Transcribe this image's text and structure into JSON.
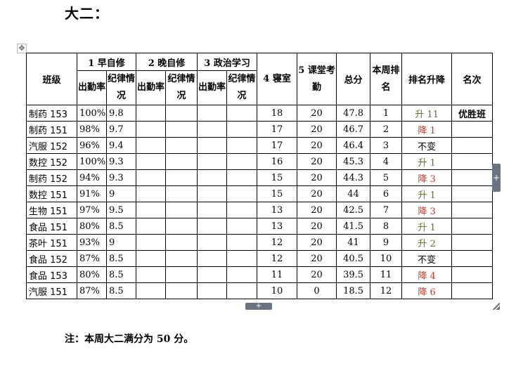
{
  "heading": "大二：",
  "table": {
    "headers": {
      "class": "班级",
      "morning": "1 早自修",
      "evening": "2 晚自修",
      "politics": "3 政治学习",
      "attendance_rate": "出勤率",
      "discipline": "纪律情况",
      "dorm": "4 寝室",
      "class_attendance": "5 课堂考勤",
      "total": "总分",
      "week_rank": "本周排名",
      "rank_change": "排名升降",
      "honor": "名次"
    },
    "rows": [
      {
        "cls": "制药 153",
        "rate": "100%",
        "disc": "9.8",
        "dorm": "18",
        "attend": "20",
        "total": "47.8",
        "rank": "1",
        "change": "升 11",
        "dir": "up",
        "honor": "优胜班"
      },
      {
        "cls": "制药 151",
        "rate": "98%",
        "disc": "9.7",
        "dorm": "17",
        "attend": "20",
        "total": "46.7",
        "rank": "2",
        "change": "降 1",
        "dir": "down",
        "honor": ""
      },
      {
        "cls": "汽服 152",
        "rate": "96%",
        "disc": "9.4",
        "dorm": "17",
        "attend": "20",
        "total": "46.4",
        "rank": "3",
        "change": "不变",
        "dir": "same",
        "honor": ""
      },
      {
        "cls": "数控 152",
        "rate": "100%",
        "disc": "9.3",
        "dorm": "16",
        "attend": "20",
        "total": "45.3",
        "rank": "4",
        "change": "升 1",
        "dir": "up",
        "honor": ""
      },
      {
        "cls": "制药 152",
        "rate": "94%",
        "disc": "9.3",
        "dorm": "15",
        "attend": "20",
        "total": "44.3",
        "rank": "5",
        "change": "降 3",
        "dir": "down",
        "honor": ""
      },
      {
        "cls": "数控 151",
        "rate": "91%",
        "disc": "9",
        "dorm": "15",
        "attend": "20",
        "total": "44",
        "rank": "6",
        "change": "升 1",
        "dir": "up",
        "honor": ""
      },
      {
        "cls": "生物 151",
        "rate": "97%",
        "disc": "9.5",
        "dorm": "13",
        "attend": "20",
        "total": "42.5",
        "rank": "7",
        "change": "降 3",
        "dir": "down",
        "honor": ""
      },
      {
        "cls": "食品 151",
        "rate": "80%",
        "disc": "8.5",
        "dorm": "13",
        "attend": "20",
        "total": "41.5",
        "rank": "8",
        "change": "升 1",
        "dir": "up",
        "honor": ""
      },
      {
        "cls": "茶叶 151",
        "rate": "93%",
        "disc": "9",
        "dorm": "12",
        "attend": "20",
        "total": "41",
        "rank": "9",
        "change": "升 2",
        "dir": "up",
        "honor": ""
      },
      {
        "cls": "食品 152",
        "rate": "87%",
        "disc": "8.5",
        "dorm": "12",
        "attend": "20",
        "total": "40.5",
        "rank": "10",
        "change": "不变",
        "dir": "same",
        "honor": ""
      },
      {
        "cls": "食品 153",
        "rate": "80%",
        "disc": "8.5",
        "dorm": "11",
        "attend": "20",
        "total": "39.5",
        "rank": "11",
        "change": "降 4",
        "dir": "down",
        "honor": ""
      },
      {
        "cls": "汽服  151",
        "rate": "87%",
        "disc": "8.5",
        "dorm": "10",
        "attend": "0",
        "total": "18.5",
        "rank": "12",
        "change": "降 6",
        "dir": "down",
        "honor": ""
      }
    ],
    "colors": {
      "up": "#6b6f2f",
      "down": "#c0392b",
      "same": "#000000"
    }
  },
  "note": "注：本周大二满分为 50 分。",
  "icons": {
    "move": "move-arrows-icon",
    "add_row": "plus-icon",
    "add_col": "plus-icon",
    "resize": "resize-corner-icon"
  }
}
